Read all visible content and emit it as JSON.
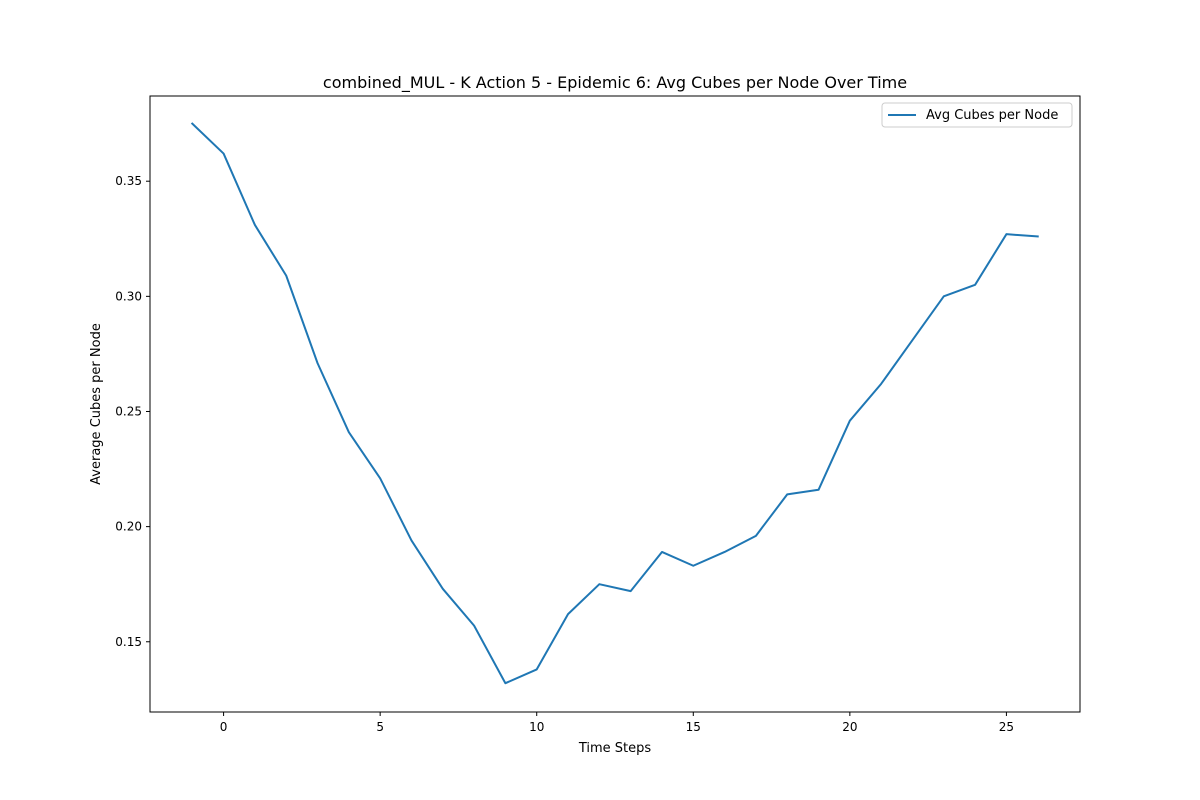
{
  "chart_data": {
    "type": "line",
    "title": "combined_MUL - K Action 5 - Epidemic 6: Avg Cubes per Node Over Time",
    "xlabel": "Time Steps",
    "ylabel": "Average Cubes per Node",
    "xlim": [
      -2.35,
      27.35
    ],
    "ylim": [
      0.1195,
      0.387
    ],
    "xticks": [
      0,
      5,
      10,
      15,
      20,
      25
    ],
    "yticks": [
      0.15,
      0.2,
      0.25,
      0.3,
      0.35
    ],
    "xtick_labels": [
      "0",
      "5",
      "10",
      "15",
      "20",
      "25"
    ],
    "ytick_labels": [
      "0.15",
      "0.20",
      "0.25",
      "0.30",
      "0.35"
    ],
    "grid": false,
    "legend": {
      "placement": "top-right",
      "entries": [
        "Avg Cubes per Node"
      ]
    },
    "series": [
      {
        "name": "Avg Cubes per Node",
        "color": "#1f77b4",
        "x": [
          -1,
          0,
          1,
          2,
          3,
          4,
          5,
          6,
          7,
          8,
          9,
          10,
          11,
          12,
          13,
          14,
          15,
          16,
          17,
          18,
          19,
          20,
          21,
          22,
          23,
          24,
          25,
          26
        ],
        "values": [
          0.375,
          0.362,
          0.331,
          0.309,
          0.271,
          0.241,
          0.221,
          0.194,
          0.173,
          0.157,
          0.132,
          0.138,
          0.162,
          0.175,
          0.172,
          0.189,
          0.183,
          0.189,
          0.196,
          0.214,
          0.216,
          0.246,
          0.262,
          0.281,
          0.3,
          0.305,
          0.327,
          0.326
        ]
      }
    ]
  }
}
